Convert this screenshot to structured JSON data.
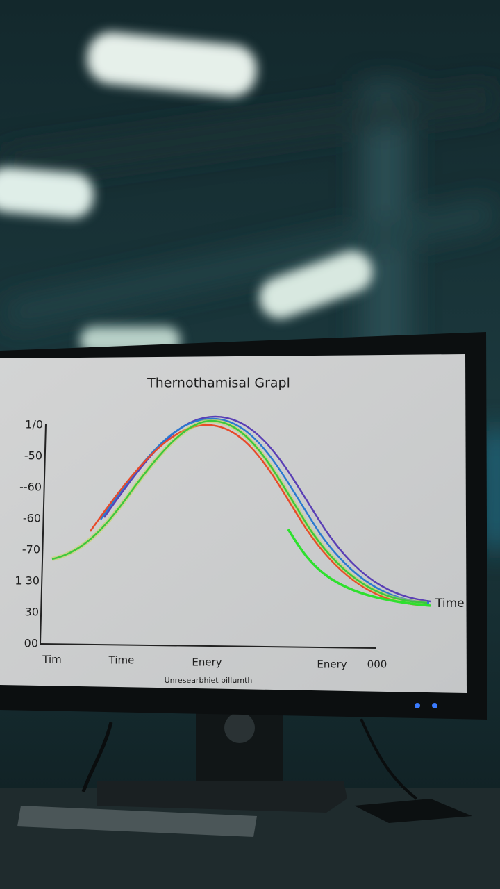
{
  "screen": {
    "title": "Thernothamisal Grapl",
    "y_axis_labels": [
      "1/0",
      "-50",
      "--60",
      "-60",
      "-70",
      "1 30",
      "30",
      "00"
    ],
    "x_axis_labels": [
      "Tim",
      "Time",
      "Enery",
      "Enery",
      "000"
    ],
    "right_label": "Time",
    "footer": "Unresearbhiet bilIumth"
  }
}
